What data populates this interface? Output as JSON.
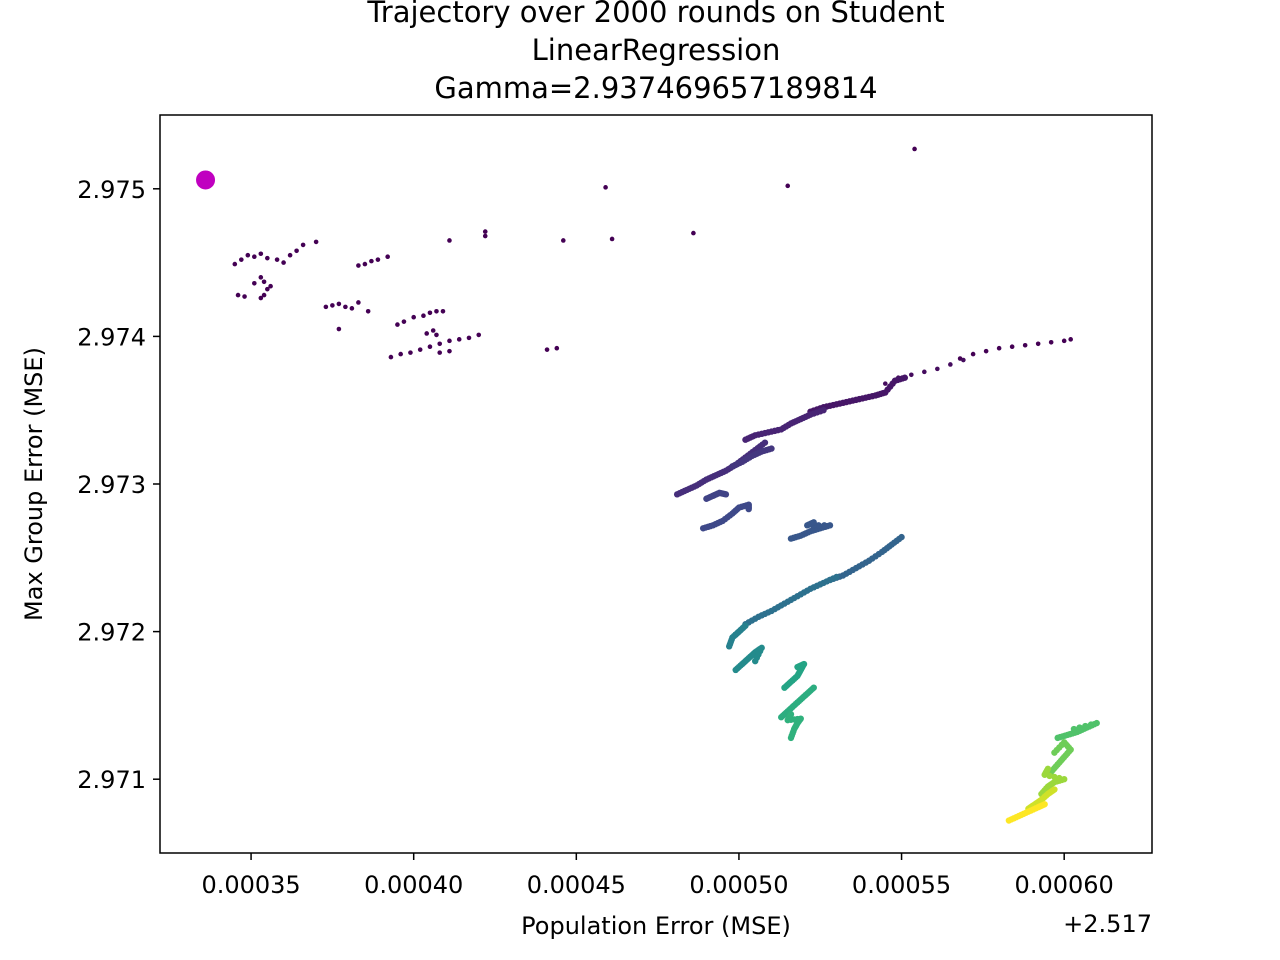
{
  "chart_data": {
    "type": "scatter",
    "title_lines": [
      "Trajectory over 2000 rounds on Student",
      "LinearRegression",
      "Gamma=2.937469657189814"
    ],
    "xlabel": "Population Error (MSE)",
    "ylabel": "Max Group Error (MSE)",
    "x_offset_label": "+2.517",
    "xlim": [
      0.000322,
      0.000627
    ],
    "ylim": [
      2.9705,
      2.9755
    ],
    "xticks": [
      0.00035,
      0.0004,
      0.00045,
      0.0005,
      0.00055,
      0.0006
    ],
    "xtick_labels": [
      "0.00035",
      "0.00040",
      "0.00045",
      "0.00050",
      "0.00055",
      "0.00060"
    ],
    "yticks": [
      2.971,
      2.972,
      2.973,
      2.974,
      2.975
    ],
    "ytick_labels": [
      "2.971",
      "2.972",
      "2.973",
      "2.974",
      "2.975"
    ],
    "grid": false,
    "colormap": "viridis",
    "start_marker": {
      "x": 0.000336,
      "y": 2.97506,
      "color": "#c000c0"
    },
    "isolated_points": [
      [
        0.000459,
        2.97501
      ],
      [
        0.000515,
        2.97502
      ],
      [
        0.000554,
        2.97527
      ],
      [
        0.000411,
        2.97465
      ],
      [
        0.000422,
        2.97468
      ],
      [
        0.000422,
        2.97471
      ],
      [
        0.000446,
        2.97465
      ],
      [
        0.000461,
        2.97466
      ],
      [
        0.000486,
        2.9747
      ],
      [
        0.00037,
        2.97464
      ],
      [
        0.000377,
        2.97405
      ],
      [
        0.000441,
        2.97391
      ],
      [
        0.000444,
        2.97392
      ]
    ],
    "clusters": [
      {
        "color_t": 0.0,
        "points": [
          [
            0.000345,
            2.97449
          ],
          [
            0.000347,
            2.97452
          ],
          [
            0.000349,
            2.97455
          ],
          [
            0.000351,
            2.97454
          ],
          [
            0.000353,
            2.97456
          ],
          [
            0.000355,
            2.97453
          ],
          [
            0.000358,
            2.97452
          ],
          [
            0.00036,
            2.9745
          ],
          [
            0.000362,
            2.97455
          ],
          [
            0.000364,
            2.97458
          ],
          [
            0.000366,
            2.97462
          ]
        ]
      },
      {
        "color_t": 0.0,
        "points": [
          [
            0.000346,
            2.97428
          ],
          [
            0.000348,
            2.97427
          ],
          [
            0.000351,
            2.97436
          ],
          [
            0.000353,
            2.9744
          ],
          [
            0.000354,
            2.97437
          ],
          [
            0.000355,
            2.97432
          ],
          [
            0.000356,
            2.97434
          ],
          [
            0.000354,
            2.97428
          ],
          [
            0.000353,
            2.97426
          ]
        ]
      },
      {
        "color_t": 0.0,
        "points": [
          [
            0.000383,
            2.97448
          ],
          [
            0.000385,
            2.97449
          ],
          [
            0.000387,
            2.97451
          ],
          [
            0.000389,
            2.97452
          ],
          [
            0.000392,
            2.97454
          ]
        ]
      },
      {
        "color_t": 0.0,
        "points": [
          [
            0.000373,
            2.9742
          ],
          [
            0.000375,
            2.97421
          ],
          [
            0.000377,
            2.97422
          ],
          [
            0.000379,
            2.9742
          ],
          [
            0.000381,
            2.97419
          ],
          [
            0.000383,
            2.97423
          ],
          [
            0.000386,
            2.97417
          ]
        ]
      },
      {
        "color_t": 0.0,
        "points": [
          [
            0.000395,
            2.97408
          ],
          [
            0.000397,
            2.9741
          ],
          [
            0.0004,
            2.97413
          ],
          [
            0.000403,
            2.97414
          ],
          [
            0.000405,
            2.97416
          ],
          [
            0.000407,
            2.97417
          ],
          [
            0.000409,
            2.97417
          ],
          [
            0.000406,
            2.97404
          ],
          [
            0.000404,
            2.97402
          ],
          [
            0.000407,
            2.97401
          ]
        ]
      },
      {
        "color_t": 0.0,
        "points": [
          [
            0.000393,
            2.97386
          ],
          [
            0.000396,
            2.97388
          ],
          [
            0.000399,
            2.97389
          ],
          [
            0.000402,
            2.97391
          ],
          [
            0.000405,
            2.97393
          ],
          [
            0.000408,
            2.97395
          ],
          [
            0.000411,
            2.97397
          ],
          [
            0.000414,
            2.97398
          ],
          [
            0.000417,
            2.97399
          ],
          [
            0.00042,
            2.97401
          ],
          [
            0.000408,
            2.97389
          ],
          [
            0.000411,
            2.9739
          ]
        ]
      },
      {
        "color_t": 0.0,
        "points": [
          [
            0.000568,
            2.97385
          ],
          [
            0.000572,
            2.97388
          ],
          [
            0.000576,
            2.9739
          ],
          [
            0.00058,
            2.97392
          ],
          [
            0.000584,
            2.97393
          ],
          [
            0.000588,
            2.97394
          ],
          [
            0.000592,
            2.97395
          ],
          [
            0.000596,
            2.97396
          ],
          [
            0.0006,
            2.97397
          ],
          [
            0.000602,
            2.97398
          ]
        ]
      },
      {
        "color_t": 0.03,
        "points": [
          [
            0.000545,
            2.97368
          ],
          [
            0.000549,
            2.97372
          ],
          [
            0.000553,
            2.97374
          ],
          [
            0.000557,
            2.97376
          ],
          [
            0.000561,
            2.97378
          ],
          [
            0.000565,
            2.97381
          ],
          [
            0.000569,
            2.97384
          ]
        ]
      },
      {
        "color_t": 0.06,
        "points": [
          [
            0.000522,
            2.97349
          ],
          [
            0.000526,
            2.97352
          ],
          [
            0.00053,
            2.97354
          ],
          [
            0.000534,
            2.97356
          ],
          [
            0.000538,
            2.97358
          ],
          [
            0.000542,
            2.9736
          ],
          [
            0.000545,
            2.97362
          ],
          [
            0.000548,
            2.9737
          ],
          [
            0.000551,
            2.97372
          ]
        ]
      },
      {
        "color_t": 0.1,
        "points": [
          [
            0.000502,
            2.9733
          ],
          [
            0.000505,
            2.97333
          ],
          [
            0.000509,
            2.97335
          ],
          [
            0.000513,
            2.97337
          ],
          [
            0.000516,
            2.97341
          ],
          [
            0.000519,
            2.97344
          ],
          [
            0.000522,
            2.97347
          ],
          [
            0.000526,
            2.9735
          ]
        ]
      },
      {
        "color_t": 0.13,
        "points": [
          [
            0.000481,
            2.97293
          ],
          [
            0.000484,
            2.97296
          ],
          [
            0.000487,
            2.97299
          ],
          [
            0.00049,
            2.97303
          ],
          [
            0.000493,
            2.97306
          ],
          [
            0.000496,
            2.97309
          ],
          [
            0.000499,
            2.97313
          ],
          [
            0.000502,
            2.97318
          ],
          [
            0.000505,
            2.97323
          ],
          [
            0.000508,
            2.97328
          ]
        ]
      },
      {
        "color_t": 0.16,
        "points": [
          [
            0.000498,
            2.97312
          ],
          [
            0.000501,
            2.97315
          ],
          [
            0.000504,
            2.97319
          ],
          [
            0.000507,
            2.97322
          ],
          [
            0.00051,
            2.97324
          ]
        ]
      },
      {
        "color_t": 0.2,
        "points": [
          [
            0.00049,
            2.9729
          ],
          [
            0.000492,
            2.97292
          ],
          [
            0.000494,
            2.97294
          ],
          [
            0.000496,
            2.97293
          ]
        ]
      },
      {
        "color_t": 0.22,
        "points": [
          [
            0.000489,
            2.9727
          ],
          [
            0.000492,
            2.97272
          ],
          [
            0.000495,
            2.97275
          ],
          [
            0.000498,
            2.9728
          ],
          [
            0.0005,
            2.97284
          ],
          [
            0.000503,
            2.97286
          ],
          [
            0.000503,
            2.97283
          ]
        ]
      },
      {
        "color_t": 0.27,
        "points": [
          [
            0.000516,
            2.97263
          ],
          [
            0.000519,
            2.97265
          ],
          [
            0.000522,
            2.97268
          ],
          [
            0.000525,
            2.9727
          ],
          [
            0.000528,
            2.97272
          ],
          [
            0.000521,
            2.97272
          ],
          [
            0.000523,
            2.97274
          ]
        ]
      },
      {
        "color_t": 0.32,
        "points": [
          [
            0.000528,
            2.97235
          ],
          [
            0.000532,
            2.97238
          ],
          [
            0.000536,
            2.97243
          ],
          [
            0.00054,
            2.97248
          ],
          [
            0.000544,
            2.97254
          ],
          [
            0.000547,
            2.97259
          ],
          [
            0.00055,
            2.97264
          ]
        ]
      },
      {
        "color_t": 0.37,
        "points": [
          [
            0.000502,
            2.97205
          ],
          [
            0.000506,
            2.9721
          ],
          [
            0.00051,
            2.97214
          ],
          [
            0.000514,
            2.97219
          ],
          [
            0.000518,
            2.97224
          ],
          [
            0.000522,
            2.97229
          ],
          [
            0.000526,
            2.97233
          ],
          [
            0.00053,
            2.97237
          ]
        ]
      },
      {
        "color_t": 0.44,
        "points": [
          [
            0.000497,
            2.9719
          ],
          [
            0.000498,
            2.97196
          ],
          [
            0.0005,
            2.972
          ],
          [
            0.000502,
            2.97204
          ],
          [
            0.000499,
            2.97198
          ]
        ]
      },
      {
        "color_t": 0.48,
        "points": [
          [
            0.000499,
            2.97174
          ],
          [
            0.000501,
            2.97178
          ],
          [
            0.000503,
            2.97182
          ],
          [
            0.000505,
            2.97186
          ],
          [
            0.000507,
            2.97189
          ],
          [
            0.000505,
            2.9718
          ]
        ]
      },
      {
        "color_t": 0.58,
        "points": [
          [
            0.000514,
            2.97162
          ],
          [
            0.000516,
            2.97166
          ],
          [
            0.000518,
            2.9717
          ],
          [
            0.000519,
            2.97174
          ],
          [
            0.00052,
            2.97178
          ],
          [
            0.000518,
            2.97176
          ]
        ]
      },
      {
        "color_t": 0.62,
        "points": [
          [
            0.000513,
            2.97142
          ],
          [
            0.000515,
            2.97146
          ],
          [
            0.000517,
            2.9715
          ],
          [
            0.000519,
            2.97154
          ],
          [
            0.000521,
            2.97158
          ],
          [
            0.000523,
            2.97162
          ]
        ]
      },
      {
        "color_t": 0.64,
        "points": [
          [
            0.000516,
            2.97128
          ],
          [
            0.000517,
            2.97134
          ],
          [
            0.000518,
            2.97138
          ],
          [
            0.000519,
            2.97141
          ],
          [
            0.000515,
            2.9714
          ],
          [
            0.000516,
            2.97144
          ]
        ]
      },
      {
        "color_t": 0.72,
        "points": [
          [
            0.000598,
            2.97128
          ],
          [
            0.000601,
            2.9713
          ],
          [
            0.000604,
            2.97132
          ],
          [
            0.000607,
            2.97135
          ],
          [
            0.00061,
            2.97138
          ],
          [
            0.000603,
            2.97134
          ]
        ]
      },
      {
        "color_t": 0.78,
        "points": [
          [
            0.000596,
            2.97105
          ],
          [
            0.000598,
            2.9711
          ],
          [
            0.0006,
            2.97115
          ],
          [
            0.000602,
            2.9712
          ],
          [
            0.0006,
            2.97125
          ],
          [
            0.000597,
            2.97118
          ]
        ]
      },
      {
        "color_t": 0.85,
        "points": [
          [
            0.000593,
            2.9709
          ],
          [
            0.000595,
            2.97095
          ],
          [
            0.000597,
            2.97098
          ],
          [
            0.0006,
            2.971
          ],
          [
            0.000594,
            2.97103
          ],
          [
            0.000595,
            2.97107
          ]
        ]
      },
      {
        "color_t": 0.93,
        "points": [
          [
            0.000589,
            2.9708
          ],
          [
            0.000591,
            2.97083
          ],
          [
            0.000593,
            2.97086
          ],
          [
            0.000595,
            2.9709
          ],
          [
            0.000597,
            2.97093
          ]
        ]
      },
      {
        "color_t": 1.0,
        "points": [
          [
            0.000583,
            2.97072
          ],
          [
            0.000586,
            2.97075
          ],
          [
            0.000589,
            2.97078
          ],
          [
            0.000592,
            2.97081
          ],
          [
            0.000594,
            2.97083
          ]
        ]
      }
    ]
  }
}
